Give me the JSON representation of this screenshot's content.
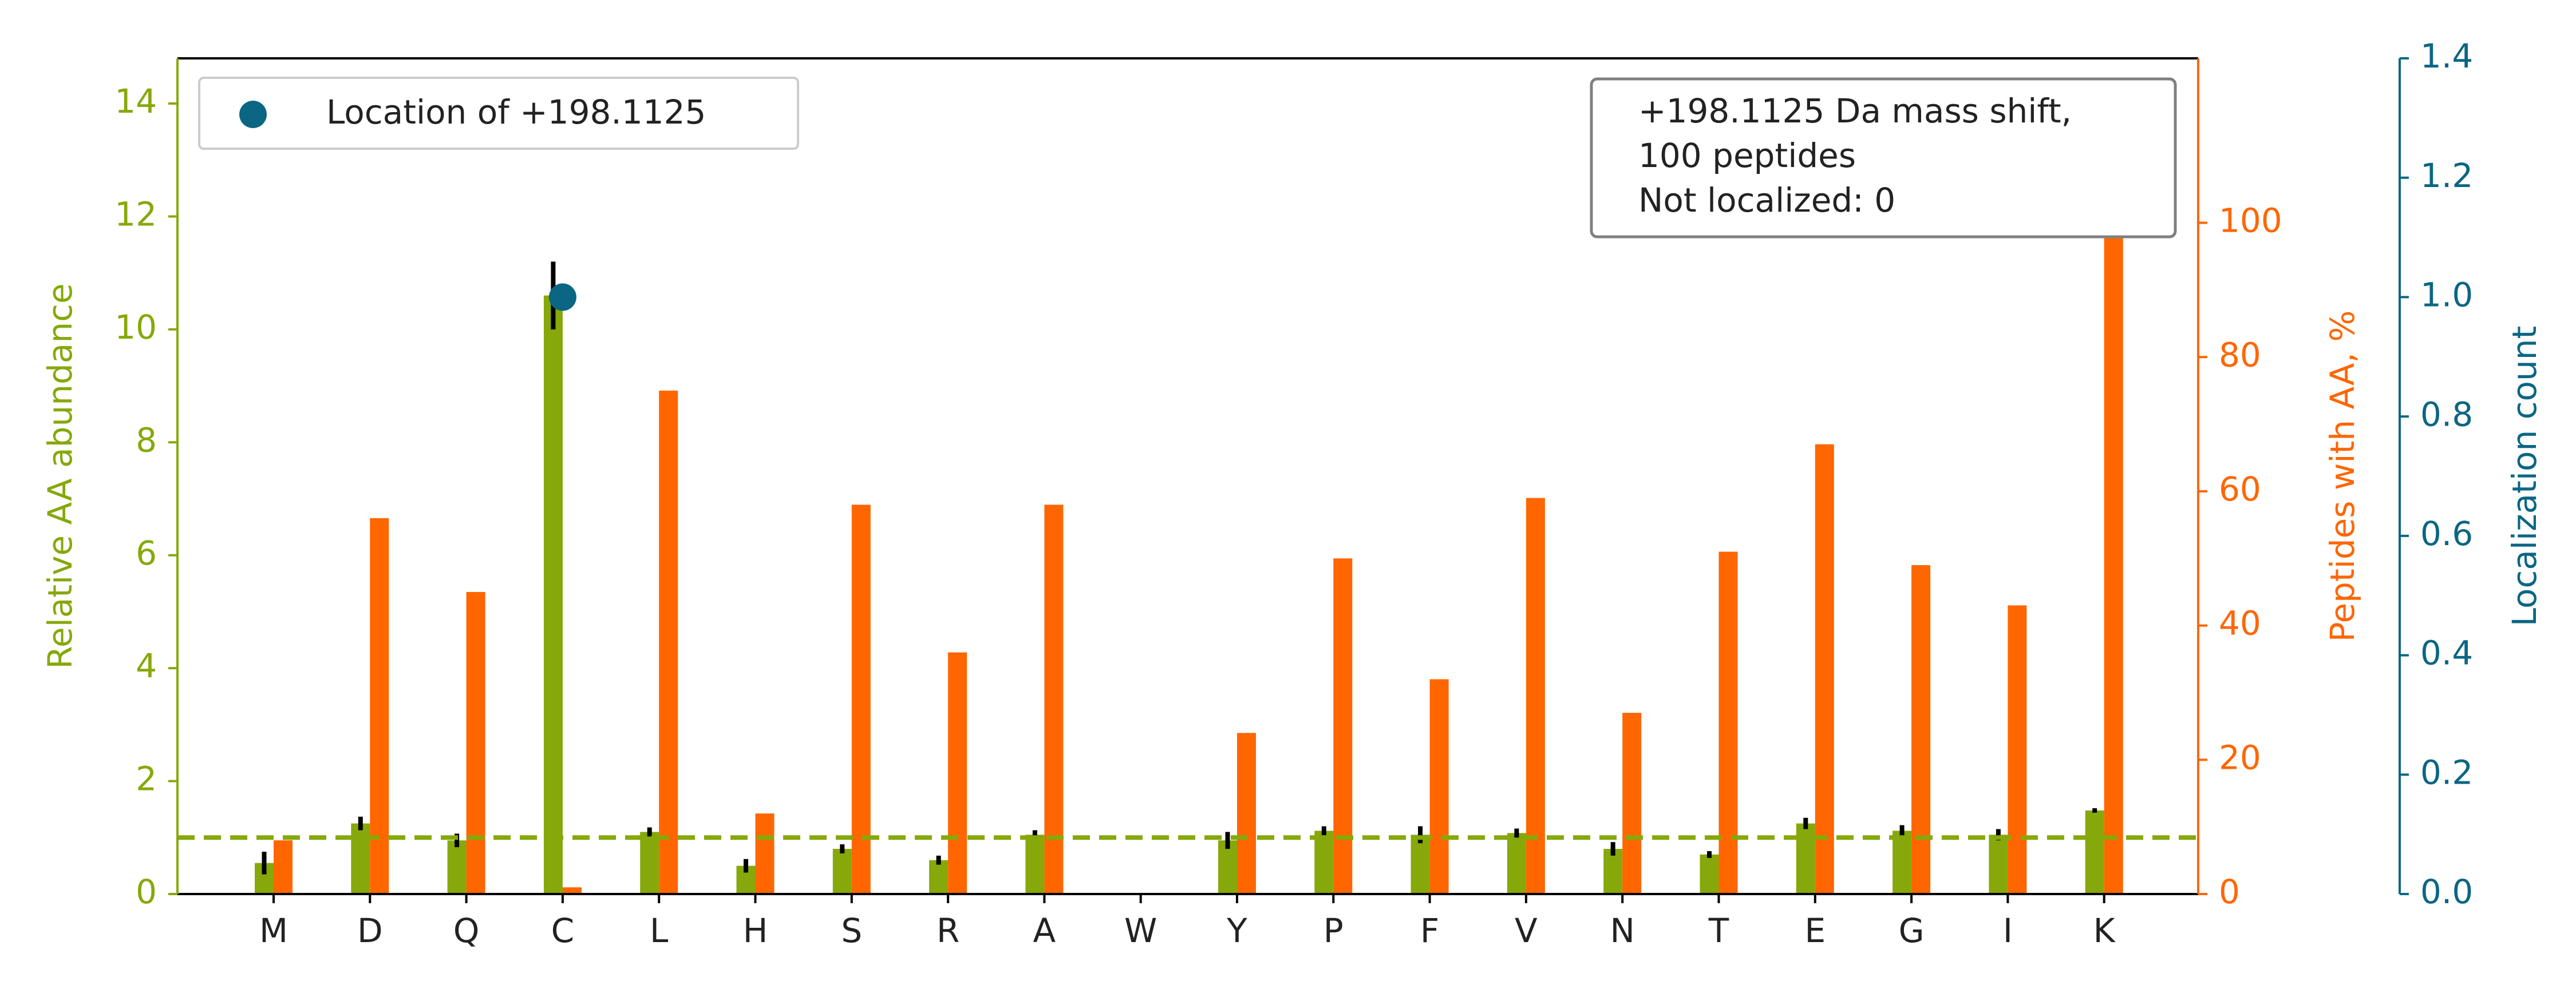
{
  "chart_data": {
    "type": "bar",
    "categories": [
      "M",
      "D",
      "Q",
      "C",
      "L",
      "H",
      "S",
      "R",
      "A",
      "W",
      "Y",
      "P",
      "F",
      "V",
      "N",
      "T",
      "E",
      "G",
      "I",
      "K"
    ],
    "series": [
      {
        "axis": "left",
        "color": "#86a80a",
        "values": [
          0.55,
          1.25,
          0.95,
          10.6,
          1.1,
          0.5,
          0.8,
          0.6,
          1.05,
          0,
          0.95,
          1.12,
          1.05,
          1.08,
          0.8,
          0.7,
          1.25,
          1.12,
          1.05,
          1.48
        ],
        "errors": [
          0.2,
          0.12,
          0.12,
          0.6,
          0.08,
          0.12,
          0.08,
          0.08,
          0.08,
          0,
          0.15,
          0.08,
          0.15,
          0.08,
          0.12,
          0.06,
          0.1,
          0.1,
          0.1,
          0.04
        ]
      },
      {
        "axis": "right",
        "color": "#ff6600",
        "values": [
          8,
          56,
          45,
          1,
          75,
          12,
          58,
          36,
          58,
          0,
          24,
          50,
          32,
          59,
          27,
          51,
          67,
          49,
          43,
          100
        ]
      },
      {
        "axis": "far-right",
        "color": "#0b6683",
        "marker": "circle",
        "points": [
          {
            "category": "C",
            "value": 1.0
          }
        ]
      }
    ],
    "axes": {
      "left": {
        "label": "Relative AA abundance",
        "ylim": [
          0,
          14.8
        ],
        "ticks": [
          0,
          2,
          4,
          6,
          8,
          10,
          12,
          14
        ],
        "color": "#86a80a"
      },
      "right": {
        "label": "Peptides with AA, %",
        "ylim": [
          0,
          124.5
        ],
        "ticks": [
          0,
          20,
          40,
          60,
          80,
          100
        ],
        "color": "#ff6600"
      },
      "far_right": {
        "label": "Localization count",
        "ylim": [
          0,
          1.4
        ],
        "ticks": [
          "0.0",
          "0.2",
          "0.4",
          "0.6",
          "0.8",
          "1.0",
          "1.2",
          "1.4"
        ],
        "color": "#0b6683"
      }
    },
    "reference_line": {
      "value": 1,
      "axis": "left",
      "style": "dashed",
      "color": "#86a80a"
    },
    "legend": {
      "placement": "top-left",
      "label": "Location of +198.1125",
      "marker_color": "#0b6683"
    },
    "annotation": {
      "placement": "top-right",
      "lines": [
        "+198.1125 Da mass shift,",
        "100 peptides",
        "Not localized: 0"
      ]
    },
    "grid": false
  }
}
